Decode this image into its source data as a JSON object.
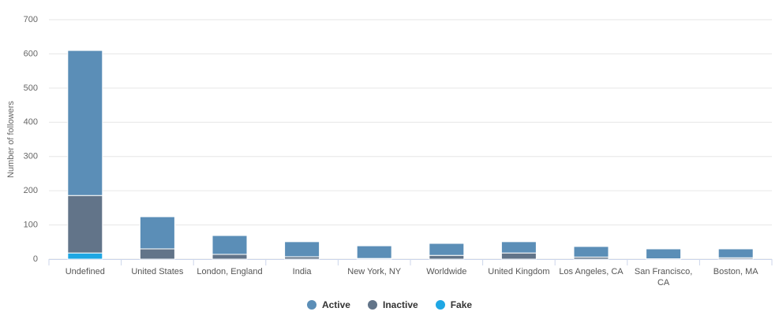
{
  "chart_data": {
    "type": "stacked-bar",
    "y_label": "Number of followers",
    "categories": [
      "Undefined",
      "United States",
      "London, England",
      "India",
      "New York, NY",
      "Worldwide",
      "United Kingdom",
      "Los Angeles, CA",
      "San Francisco, CA",
      "Boston, MA"
    ],
    "series": [
      {
        "name": "Active",
        "color": "#5b8eb7",
        "values": [
          424,
          94,
          55,
          44,
          37,
          35,
          33,
          31,
          29,
          26
        ]
      },
      {
        "name": "Inactive",
        "color": "#627489",
        "values": [
          168,
          30,
          14,
          7,
          2,
          11,
          18,
          6,
          1,
          4
        ]
      },
      {
        "name": "Fake",
        "color": "#1fa7e4",
        "values": [
          18,
          0,
          0,
          0,
          0,
          0,
          0,
          0,
          0,
          0
        ]
      }
    ],
    "stack_order": [
      "Fake",
      "Inactive",
      "Active"
    ],
    "ylim": [
      0,
      700
    ],
    "yticks": [
      0,
      100,
      200,
      300,
      400,
      500,
      600,
      700
    ],
    "grid": true
  }
}
